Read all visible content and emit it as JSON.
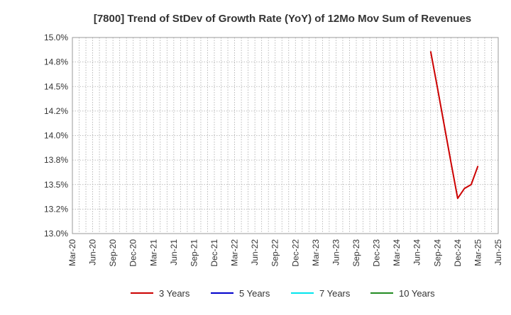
{
  "chart_data": {
    "type": "line",
    "title": "[7800]  Trend of StDev of Growth Rate (YoY) of 12Mo Mov Sum of Revenues",
    "xlabel": "",
    "ylabel": "",
    "x_tick_labels": [
      "Mar-20",
      "Jun-20",
      "Sep-20",
      "Dec-20",
      "Mar-21",
      "Jun-21",
      "Sep-21",
      "Dec-21",
      "Mar-22",
      "Jun-22",
      "Sep-22",
      "Dec-22",
      "Mar-23",
      "Jun-23",
      "Sep-23",
      "Dec-23",
      "Mar-24",
      "Jun-24",
      "Sep-24",
      "Dec-24",
      "Mar-25",
      "Jun-25"
    ],
    "y_tick_labels": [
      "13.0%",
      "13.2%",
      "13.5%",
      "13.8%",
      "14.0%",
      "14.2%",
      "14.5%",
      "14.8%",
      "15.0%"
    ],
    "y_tick_values": [
      13.0,
      13.25,
      13.5,
      13.75,
      14.0,
      14.25,
      14.5,
      14.75,
      15.0
    ],
    "ylim": [
      13.0,
      15.0
    ],
    "grid": true,
    "legend_position": "bottom",
    "series": [
      {
        "name": "3 Years",
        "color": "#cc0000",
        "points": [
          {
            "x": "2024-08",
            "y": 14.86
          },
          {
            "x": "2024-09",
            "y": 14.49
          },
          {
            "x": "2024-10",
            "y": 14.11
          },
          {
            "x": "2024-11",
            "y": 13.73
          },
          {
            "x": "2024-12",
            "y": 13.36
          },
          {
            "x": "2025-01",
            "y": 13.46
          },
          {
            "x": "2025-02",
            "y": 13.5
          },
          {
            "x": "2025-03",
            "y": 13.69
          }
        ]
      },
      {
        "name": "5 Years",
        "color": "#0000cc",
        "points": []
      },
      {
        "name": "7 Years",
        "color": "#00e5ee",
        "points": []
      },
      {
        "name": "10 Years",
        "color": "#228b22",
        "points": []
      }
    ]
  }
}
